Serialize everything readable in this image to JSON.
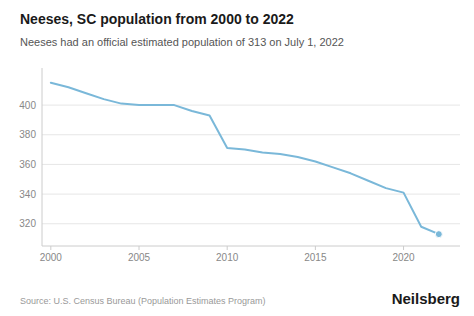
{
  "chart_data": {
    "type": "line",
    "title": "Neeses, SC population from 2000 to 2022",
    "subtitle": "Neeses had an official estimated population of 313 on July 1, 2022",
    "source": "Source: U.S. Census Bureau (Population Estimates Program)",
    "watermark": "Neilsberg",
    "x": [
      2000,
      2001,
      2002,
      2003,
      2004,
      2005,
      2006,
      2007,
      2008,
      2009,
      2010,
      2011,
      2012,
      2013,
      2014,
      2015,
      2016,
      2017,
      2018,
      2019,
      2020,
      2021,
      2022
    ],
    "values": [
      415,
      412,
      408,
      404,
      401,
      400,
      400,
      400,
      396,
      393,
      371,
      370,
      368,
      367,
      365,
      362,
      358,
      354,
      349,
      344,
      341,
      318,
      313
    ],
    "color": "#7ab8d9",
    "xlim": [
      1999.5,
      2023.2
    ],
    "xticks": [
      2000,
      2005,
      2010,
      2015,
      2020
    ],
    "ylim": [
      305,
      425
    ],
    "yticks": [
      320,
      340,
      360,
      380,
      400
    ],
    "grid": true
  }
}
